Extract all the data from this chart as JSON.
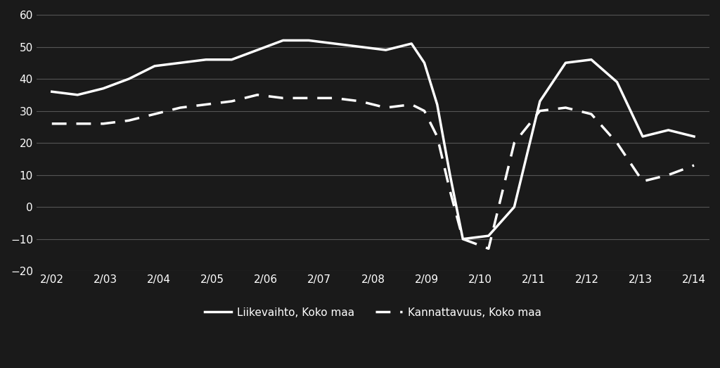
{
  "background_color": "#1a1a1a",
  "text_color": "#ffffff",
  "grid_color": "#555555",
  "line1_color": "#ffffff",
  "line2_color": "#ffffff",
  "title": "",
  "xlabel": "",
  "ylabel": "",
  "ylim": [
    -20,
    60
  ],
  "yticks": [
    -20,
    -10,
    0,
    10,
    20,
    30,
    40,
    50,
    60
  ],
  "xtick_labels": [
    "2/02",
    "2/03",
    "2/04",
    "2/05",
    "2/06",
    "2/07",
    "2/08",
    "2/09",
    "2/10",
    "2/11",
    "2/12",
    "2/13",
    "2/14"
  ],
  "legend_label1": "Liikevaihto, Koko maa",
  "legend_label2": "Kannattavuus, Koko maa",
  "x_liikevaihto": [
    0,
    0.5,
    1,
    1.5,
    2,
    2.5,
    3,
    3.5,
    4,
    4.5,
    5,
    5.5,
    6,
    6.5,
    7,
    7.25,
    7.5,
    7.75,
    8,
    8.5,
    9,
    9.5,
    10,
    10.5,
    11,
    11.5,
    12,
    12.5
  ],
  "y_liikevaihto": [
    36,
    35,
    37,
    40,
    44,
    45,
    46,
    46,
    49,
    52,
    52,
    51,
    50,
    49,
    51,
    45,
    32,
    10,
    -10,
    -9,
    0,
    33,
    45,
    46,
    39,
    22,
    24,
    22
  ],
  "x_kannattavuus": [
    0,
    0.5,
    1,
    1.5,
    2,
    2.5,
    3,
    3.5,
    4,
    4.5,
    5,
    5.5,
    6,
    6.5,
    7,
    7.25,
    7.5,
    7.75,
    8,
    8.5,
    9,
    9.5,
    10,
    10.5,
    11,
    11.5,
    12,
    12.5
  ],
  "y_kannattavuus": [
    26,
    26,
    26,
    27,
    29,
    31,
    32,
    33,
    35,
    34,
    34,
    34,
    33,
    31,
    32,
    30,
    22,
    5,
    -10,
    -13,
    20,
    30,
    31,
    29,
    20,
    8,
    10,
    13
  ]
}
